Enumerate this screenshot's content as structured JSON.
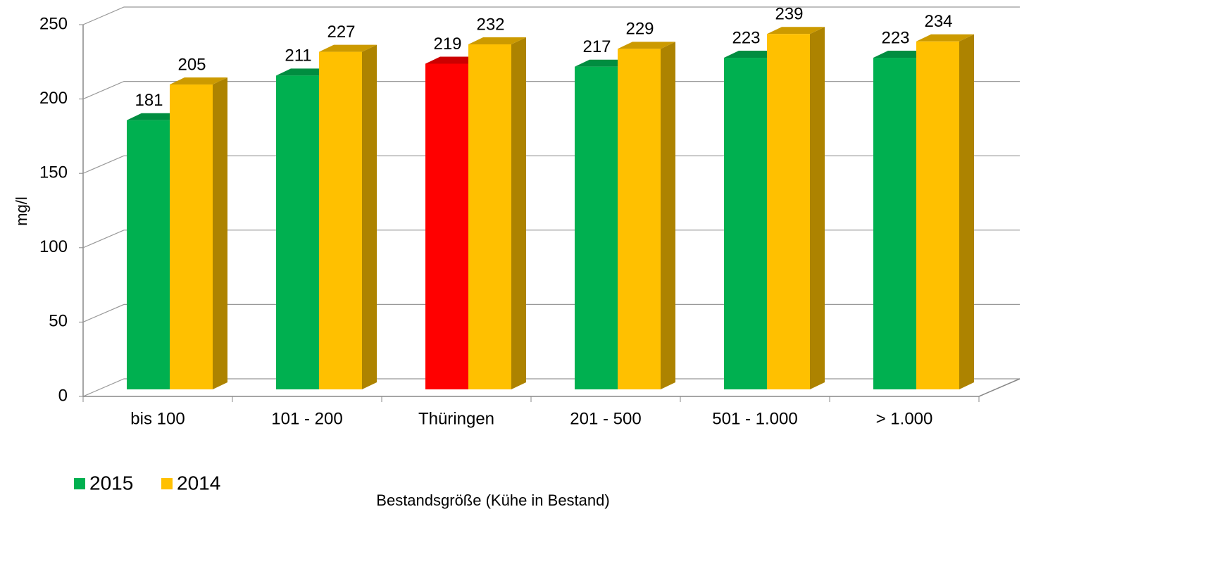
{
  "chart_data": {
    "type": "bar3d",
    "y_label": "mg/l",
    "x_label": "Bestandsgröße (Kühe in Bestand)",
    "categories": [
      "bis 100",
      "101 - 200",
      "Thüringen",
      "201 - 500",
      "501 - 1.000",
      "> 1.000"
    ],
    "series": [
      {
        "name": "2015",
        "color": "#00b050",
        "colors": [
          "#00b050",
          "#00b050",
          "#ff0000",
          "#00b050",
          "#00b050",
          "#00b050"
        ],
        "values": [
          181,
          211,
          219,
          217,
          223,
          223
        ]
      },
      {
        "name": "2014",
        "color": "#ffc000",
        "colors": [
          "#ffc000",
          "#ffc000",
          "#ffc000",
          "#ffc000",
          "#ffc000",
          "#ffc000"
        ],
        "values": [
          205,
          227,
          232,
          229,
          239,
          234
        ]
      }
    ],
    "ylim": [
      0,
      250
    ],
    "yticks": [
      0,
      50,
      100,
      150,
      200,
      250
    ],
    "grid": true,
    "legend": "bottom-left"
  }
}
